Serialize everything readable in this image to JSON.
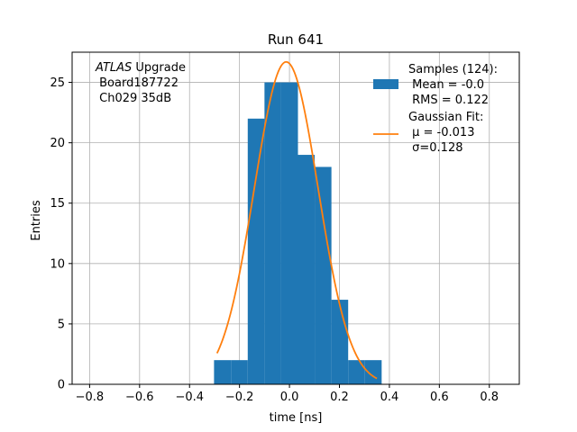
{
  "chart_data": {
    "type": "histogram",
    "title": "Run 641",
    "xlabel": "time [ns]",
    "ylabel": "Entries",
    "xlim": [
      -0.87,
      0.92
    ],
    "ylim": [
      0,
      27.5
    ],
    "grid": true,
    "x_ticks": [
      -0.8,
      -0.6,
      -0.4,
      -0.2,
      0.0,
      0.2,
      0.4,
      0.6,
      0.8
    ],
    "x_tick_labels": [
      "−0.8",
      "−0.6",
      "−0.4",
      "−0.2",
      "0.0",
      "0.2",
      "0.4",
      "0.6",
      "0.8"
    ],
    "y_ticks": [
      0,
      5,
      10,
      15,
      20,
      25
    ],
    "y_tick_labels": [
      "0",
      "5",
      "10",
      "15",
      "20",
      "25"
    ],
    "annotation": {
      "italic": "ATLAS",
      "line1_rest": " Upgrade",
      "line2": " Board187722",
      "line3": " Ch029 35dB"
    },
    "histogram": {
      "name": "Samples (124):",
      "color": "#1f77b4",
      "bin_edges": [
        -0.302,
        -0.234,
        -0.167,
        -0.1,
        -0.033,
        0.034,
        0.101,
        0.168,
        0.235,
        0.302,
        0.369
      ],
      "counts": [
        2,
        2,
        22,
        25,
        25,
        19,
        18,
        7,
        2,
        2
      ],
      "stats": [
        " Mean = -0.0",
        " RMS = 0.122"
      ]
    },
    "fit": {
      "name": "Gaussian Fit:",
      "color": "#ff7f0e",
      "mu": -0.013,
      "sigma": 0.128,
      "amplitude": 26.7,
      "x_range": [
        -0.29,
        0.35
      ],
      "params": [
        " μ = -0.013",
        " σ=0.128"
      ]
    },
    "legend_position": "upper right"
  }
}
